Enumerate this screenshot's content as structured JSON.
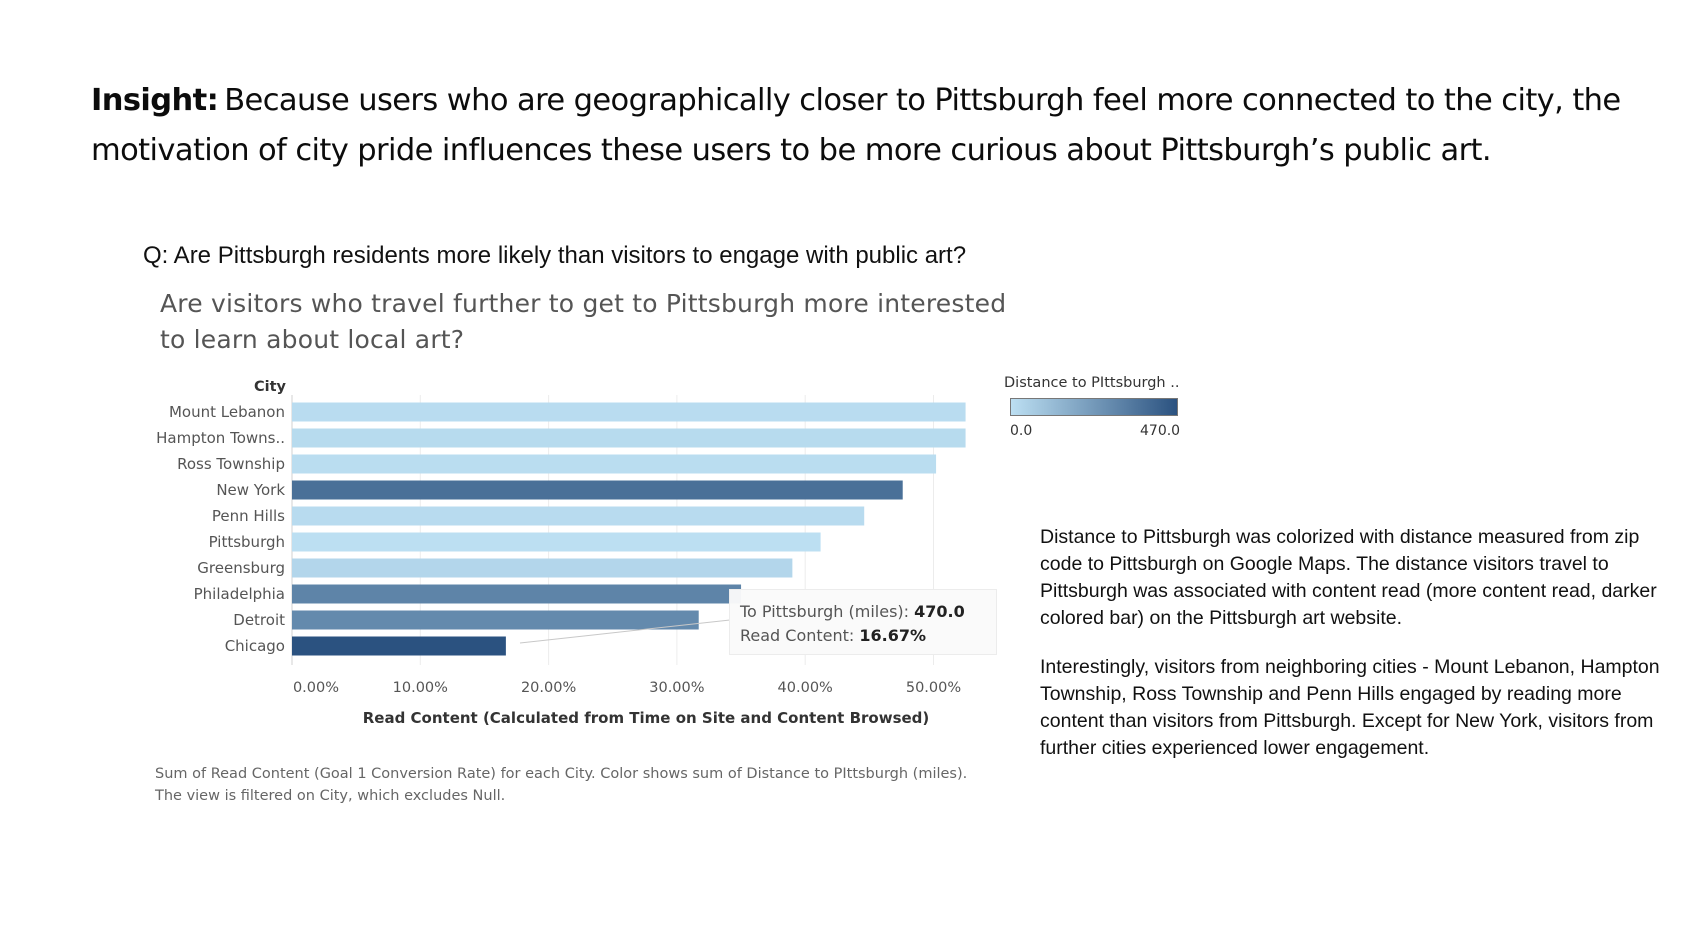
{
  "insight": {
    "label": "Insight:",
    "text": "Because users who are geographically closer to Pittsburgh feel more connected to the city, the motivation of city pride influences these users to be more curious about Pittsburgh’s public art."
  },
  "question": "Q: Are Pittsburgh residents more likely than visitors to engage with public art?",
  "chart_data": {
    "type": "bar",
    "orientation": "horizontal",
    "title": "Are visitors who travel further to get to Pittsburgh more interested to learn about local art?",
    "ylabel": "City",
    "xlabel": "Read Content (Calculated from Time on Site and Content Browsed)",
    "categories": [
      "Mount Lebanon",
      "Hampton Towns..",
      "Ross Township",
      "New York",
      "Penn Hills",
      "Pittsburgh",
      "Greensburg",
      "Philadelphia",
      "Detroit",
      "Chicago"
    ],
    "values": [
      52.5,
      52.5,
      50.2,
      47.6,
      44.6,
      41.2,
      39.0,
      35.0,
      31.7,
      16.67
    ],
    "distance_miles": [
      10,
      15,
      8,
      370,
      12,
      0,
      30,
      305,
      285,
      470
    ],
    "xticks": [
      "0.00%",
      "10.00%",
      "20.00%",
      "30.00%",
      "40.00%",
      "50.00%"
    ],
    "xlim": [
      0,
      53
    ],
    "grid": true,
    "color_legend": {
      "title": "Distance to PIttsburgh ..",
      "min_label": "0.0",
      "max_label": "470.0",
      "min_color": "#bcdff2",
      "max_color": "#2b5280",
      "placement": "top-right"
    }
  },
  "tooltip": {
    "label1": "To Pittsburgh (miles):",
    "value1": "470.0",
    "label2": "Read Content:",
    "value2": "16.67%"
  },
  "footnote": {
    "line1": "Sum of Read Content (Goal 1 Conversion Rate) for each City.  Color shows sum of Distance to PIttsburgh (miles).",
    "line2": "The view is filtered on City, which excludes Null."
  },
  "notes": {
    "p1": "Distance to Pittsburgh was colorized with distance measured from zip code to Pittsburgh on Google Maps. The distance visitors travel to Pittsburgh was associated with content read (more content read, darker colored bar) on the Pittsburgh art website.",
    "p2": "Interestingly, visitors from neighboring cities - Mount Lebanon, Hampton Township, Ross Township and Penn Hills engaged by reading more content than visitors from Pittsburgh. Except for New York, visitors from further cities experienced lower engagement."
  }
}
